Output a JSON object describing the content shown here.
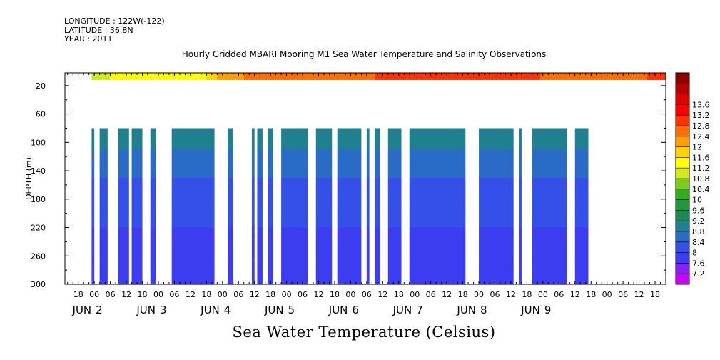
{
  "meta": {
    "longitude": "LONGITUDE : 122W(-122)",
    "latitude": "LATITUDE : 36.8N",
    "year": "YEAR : 2011"
  },
  "chart_data": {
    "type": "heatmap",
    "title": "Hourly Gridded MBARI Mooring M1 Sea Water Temperature and Salinity Observations",
    "variable_label": "Sea Water Temperature (Celsius)",
    "ylabel": "DEPTH (m)",
    "ylim": [
      300,
      2
    ],
    "y_axis_inverted": true,
    "y_ticks": [
      20,
      60,
      100,
      140,
      180,
      220,
      260,
      300
    ],
    "x_range_hours": [
      -11,
      214
    ],
    "x_tick_labels": [
      {
        "h": -6,
        "label": "18"
      },
      {
        "h": 0,
        "label": "00"
      },
      {
        "h": 6,
        "label": "06"
      },
      {
        "h": 12,
        "label": "12"
      },
      {
        "h": 18,
        "label": "18"
      },
      {
        "h": 24,
        "label": "00"
      },
      {
        "h": 30,
        "label": "06"
      },
      {
        "h": 36,
        "label": "12"
      },
      {
        "h": 42,
        "label": "18"
      },
      {
        "h": 48,
        "label": "00"
      },
      {
        "h": 54,
        "label": "06"
      },
      {
        "h": 60,
        "label": "12"
      },
      {
        "h": 66,
        "label": "18"
      },
      {
        "h": 72,
        "label": "00"
      },
      {
        "h": 78,
        "label": "06"
      },
      {
        "h": 84,
        "label": "12"
      },
      {
        "h": 90,
        "label": "18"
      },
      {
        "h": 96,
        "label": "00"
      },
      {
        "h": 102,
        "label": "06"
      },
      {
        "h": 108,
        "label": "12"
      },
      {
        "h": 114,
        "label": "18"
      },
      {
        "h": 120,
        "label": "00"
      },
      {
        "h": 126,
        "label": "06"
      },
      {
        "h": 132,
        "label": "12"
      },
      {
        "h": 138,
        "label": "18"
      },
      {
        "h": 144,
        "label": "00"
      },
      {
        "h": 150,
        "label": "06"
      },
      {
        "h": 156,
        "label": "12"
      },
      {
        "h": 162,
        "label": "18"
      },
      {
        "h": 168,
        "label": "00"
      },
      {
        "h": 174,
        "label": "06"
      },
      {
        "h": 180,
        "label": "12"
      },
      {
        "h": 186,
        "label": "18"
      },
      {
        "h": 192,
        "label": "00"
      },
      {
        "h": 198,
        "label": "06"
      },
      {
        "h": 204,
        "label": "12"
      },
      {
        "h": 210,
        "label": "18"
      }
    ],
    "date_labels": [
      {
        "h": 0,
        "month": "JUN",
        "day": "2"
      },
      {
        "h": 24,
        "month": "JUN",
        "day": "3"
      },
      {
        "h": 48,
        "month": "JUN",
        "day": "4"
      },
      {
        "h": 72,
        "month": "JUN",
        "day": "5"
      },
      {
        "h": 96,
        "month": "JUN",
        "day": "6"
      },
      {
        "h": 120,
        "month": "JUN",
        "day": "7"
      },
      {
        "h": 144,
        "month": "JUN",
        "day": "8"
      },
      {
        "h": 168,
        "month": "JUN",
        "day": "9"
      }
    ],
    "surface_layer": {
      "depth_range": [
        2,
        12
      ],
      "start_hour": -1,
      "end_hour": 214,
      "temp_by_hour": [
        [
          -1,
          11.0
        ],
        [
          10,
          11.3
        ],
        [
          25,
          11.4
        ],
        [
          40,
          11.4
        ],
        [
          48,
          12.2
        ],
        [
          60,
          12.5
        ],
        [
          84,
          12.6
        ],
        [
          100,
          12.7
        ],
        [
          110,
          12.9
        ],
        [
          124,
          12.8
        ],
        [
          140,
          13.0
        ],
        [
          160,
          12.9
        ],
        [
          180,
          12.6
        ],
        [
          200,
          12.7
        ],
        [
          214,
          12.9
        ]
      ]
    },
    "deep_layer": {
      "depth_range": [
        80,
        300
      ],
      "profile_by_depth": [
        [
          80,
          9.2
        ],
        [
          100,
          8.9
        ],
        [
          140,
          8.5
        ],
        [
          180,
          8.2
        ],
        [
          220,
          8.0
        ],
        [
          260,
          7.8
        ],
        [
          300,
          7.6
        ]
      ],
      "segments_hours": [
        [
          -1,
          0
        ],
        [
          2,
          5
        ],
        [
          9,
          13
        ],
        [
          14,
          18
        ],
        [
          21,
          23
        ],
        [
          29,
          45
        ],
        [
          50,
          52
        ],
        [
          59,
          60
        ],
        [
          61,
          63
        ],
        [
          65,
          67
        ],
        [
          70,
          80
        ],
        [
          83,
          89
        ],
        [
          91,
          100
        ],
        [
          102,
          103
        ],
        [
          105,
          107
        ],
        [
          110,
          115
        ],
        [
          118,
          139
        ],
        [
          144,
          157
        ],
        [
          159,
          160
        ],
        [
          164,
          177
        ],
        [
          180,
          185
        ]
      ]
    },
    "colorbar": {
      "levels": [
        7.2,
        7.6,
        8,
        8.4,
        8.8,
        9.2,
        9.6,
        10,
        10.4,
        10.8,
        11.2,
        11.6,
        12,
        12.4,
        12.8,
        13.2,
        13.6
      ],
      "colors": [
        "#c800ff",
        "#8a1ef5",
        "#3c3cf0",
        "#3550e8",
        "#2b6bc8",
        "#1f8090",
        "#1a8a55",
        "#1a9a3c",
        "#32ad23",
        "#7ccc18",
        "#d2ea1c",
        "#ffff00",
        "#ffd200",
        "#ffa000",
        "#ff6e00",
        "#ff3300",
        "#ff0000",
        "#dd0000",
        "#b30000",
        "#8a0000"
      ]
    }
  }
}
